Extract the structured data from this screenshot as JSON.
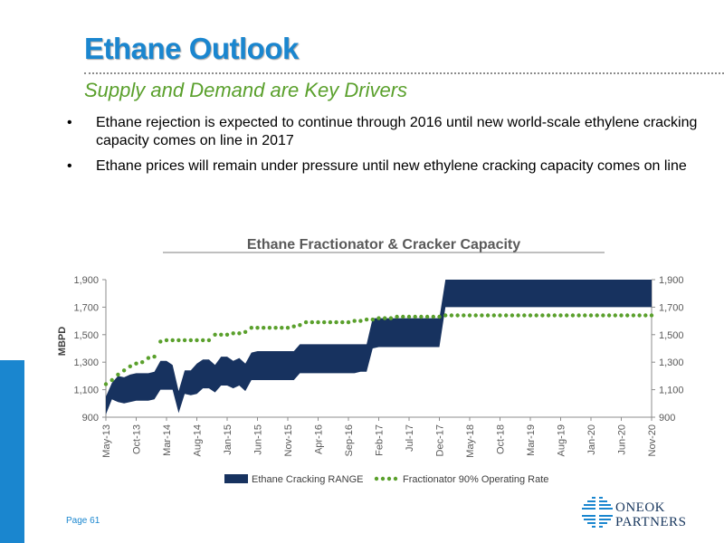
{
  "slide": {
    "title": "Ethane Outlook",
    "subtitle": "Supply and Demand are Key Drivers",
    "bullets": [
      "Ethane rejection is expected to continue through 2016 until new world-scale ethylene cracking capacity comes on line in 2017",
      "Ethane prices will remain under pressure until new ethylene cracking capacity comes on line"
    ],
    "bullet_char": "•",
    "page_label": "Page 61"
  },
  "logo": {
    "line1": "ONEOK",
    "line2": "PARTNERS",
    "color": "#17365d",
    "icon": "oneok-logo-icon"
  },
  "colors": {
    "title": "#1a86cf",
    "subtitle": "#5aa02c",
    "band": "#17325f",
    "dots": "#5aa02c"
  },
  "chart_data": {
    "type": "area",
    "title": "Ethane Fractionator & Cracker Capacity",
    "ylabel": "MBPD",
    "ylim": [
      900,
      1900
    ],
    "yticks": [
      "900",
      "1,100",
      "1,300",
      "1,500",
      "1,700",
      "1,900"
    ],
    "xlim": [
      "2013-05",
      "2020-11"
    ],
    "xtick_labels": [
      "May-13",
      "Oct-13",
      "Mar-14",
      "Aug-14",
      "Jan-15",
      "Jun-15",
      "Nov-15",
      "Apr-16",
      "Sep-16",
      "Feb-17",
      "Jul-17",
      "Dec-17",
      "May-18",
      "Oct-18",
      "Mar-19",
      "Aug-19",
      "Jan-20",
      "Jun-20",
      "Nov-20"
    ],
    "legend": [
      "Ethane Cracking RANGE",
      "Fractionator 90% Operating Rate"
    ],
    "legend_position": "bottom",
    "series": [
      {
        "name": "Ethane Cracking RANGE",
        "kind": "range",
        "x": [
          "2013-05",
          "2013-06",
          "2013-07",
          "2013-08",
          "2013-09",
          "2013-10",
          "2013-11",
          "2013-12",
          "2014-01",
          "2014-02",
          "2014-03",
          "2014-04",
          "2014-05",
          "2014-06",
          "2014-07",
          "2014-08",
          "2014-09",
          "2014-10",
          "2014-11",
          "2014-12",
          "2015-01",
          "2015-02",
          "2015-03",
          "2015-04",
          "2015-05",
          "2015-06",
          "2015-07",
          "2015-08",
          "2015-09",
          "2015-10",
          "2015-11",
          "2015-12",
          "2016-01",
          "2016-02",
          "2016-03",
          "2016-04",
          "2016-05",
          "2016-06",
          "2016-07",
          "2016-08",
          "2016-09",
          "2016-10",
          "2016-11",
          "2016-12",
          "2017-01",
          "2017-02",
          "2017-03",
          "2017-04",
          "2017-05",
          "2017-06",
          "2017-07",
          "2017-08",
          "2017-09",
          "2017-10",
          "2017-11",
          "2017-12",
          "2018-01",
          "2020-11"
        ],
        "low": [
          920,
          1030,
          1010,
          1000,
          1010,
          1020,
          1020,
          1020,
          1030,
          1100,
          1100,
          1100,
          930,
          1070,
          1060,
          1070,
          1110,
          1110,
          1080,
          1130,
          1130,
          1110,
          1130,
          1090,
          1170,
          1170,
          1170,
          1170,
          1170,
          1170,
          1170,
          1170,
          1220,
          1220,
          1220,
          1220,
          1220,
          1220,
          1220,
          1220,
          1220,
          1220,
          1230,
          1230,
          1400,
          1410,
          1410,
          1410,
          1410,
          1410,
          1410,
          1410,
          1410,
          1410,
          1410,
          1410,
          1700,
          1700
        ],
        "high": [
          1050,
          1150,
          1200,
          1190,
          1210,
          1220,
          1220,
          1220,
          1230,
          1310,
          1310,
          1280,
          1090,
          1240,
          1240,
          1290,
          1320,
          1320,
          1280,
          1340,
          1340,
          1310,
          1330,
          1290,
          1370,
          1380,
          1380,
          1380,
          1380,
          1380,
          1380,
          1380,
          1430,
          1430,
          1430,
          1430,
          1430,
          1430,
          1430,
          1430,
          1430,
          1430,
          1430,
          1430,
          1620,
          1620,
          1620,
          1620,
          1620,
          1620,
          1620,
          1620,
          1620,
          1620,
          1620,
          1620,
          1900,
          1900
        ]
      },
      {
        "name": "Fractionator 90% Operating Rate",
        "kind": "dots",
        "x": [
          "2013-05",
          "2013-06",
          "2013-07",
          "2013-08",
          "2013-09",
          "2013-10",
          "2013-11",
          "2013-12",
          "2014-01",
          "2014-02",
          "2014-03",
          "2014-04",
          "2014-05",
          "2014-06",
          "2014-07",
          "2014-08",
          "2014-09",
          "2014-10",
          "2014-11",
          "2014-12",
          "2015-01",
          "2015-02",
          "2015-03",
          "2015-04",
          "2015-05",
          "2015-06",
          "2015-07",
          "2015-08",
          "2015-09",
          "2015-10",
          "2015-11",
          "2015-12",
          "2016-01",
          "2016-02",
          "2016-03",
          "2016-04",
          "2016-05",
          "2016-06",
          "2016-07",
          "2016-08",
          "2016-09",
          "2016-10",
          "2016-11",
          "2016-12",
          "2017-01",
          "2017-02",
          "2017-03",
          "2017-04",
          "2017-05",
          "2017-06",
          "2017-07",
          "2017-08",
          "2017-09",
          "2017-10",
          "2017-11",
          "2017-12",
          "2018-01",
          "2018-02",
          "2018-03",
          "2018-04",
          "2018-05",
          "2018-06",
          "2018-07",
          "2018-08",
          "2018-09",
          "2018-10",
          "2018-11",
          "2018-12",
          "2019-01",
          "2019-02",
          "2019-03",
          "2019-04",
          "2019-05",
          "2019-06",
          "2019-07",
          "2019-08",
          "2019-09",
          "2019-10",
          "2019-11",
          "2019-12",
          "2020-01",
          "2020-02",
          "2020-03",
          "2020-04",
          "2020-05",
          "2020-06",
          "2020-07",
          "2020-08",
          "2020-09",
          "2020-10",
          "2020-11"
        ],
        "y": [
          1140,
          1170,
          1210,
          1240,
          1270,
          1290,
          1300,
          1330,
          1340,
          1450,
          1460,
          1460,
          1460,
          1460,
          1460,
          1460,
          1460,
          1460,
          1500,
          1500,
          1500,
          1510,
          1510,
          1520,
          1550,
          1550,
          1550,
          1550,
          1550,
          1550,
          1550,
          1560,
          1570,
          1590,
          1590,
          1590,
          1590,
          1590,
          1590,
          1590,
          1590,
          1600,
          1600,
          1610,
          1610,
          1620,
          1620,
          1620,
          1630,
          1630,
          1630,
          1630,
          1630,
          1630,
          1630,
          1630,
          1640,
          1640,
          1640,
          1640,
          1640,
          1640,
          1640,
          1640,
          1640,
          1640,
          1640,
          1640,
          1640,
          1640,
          1640,
          1640,
          1640,
          1640,
          1640,
          1640,
          1640,
          1640,
          1640,
          1640,
          1640,
          1640,
          1640,
          1640,
          1640,
          1640,
          1640,
          1640,
          1640,
          1640,
          1640
        ]
      }
    ]
  }
}
